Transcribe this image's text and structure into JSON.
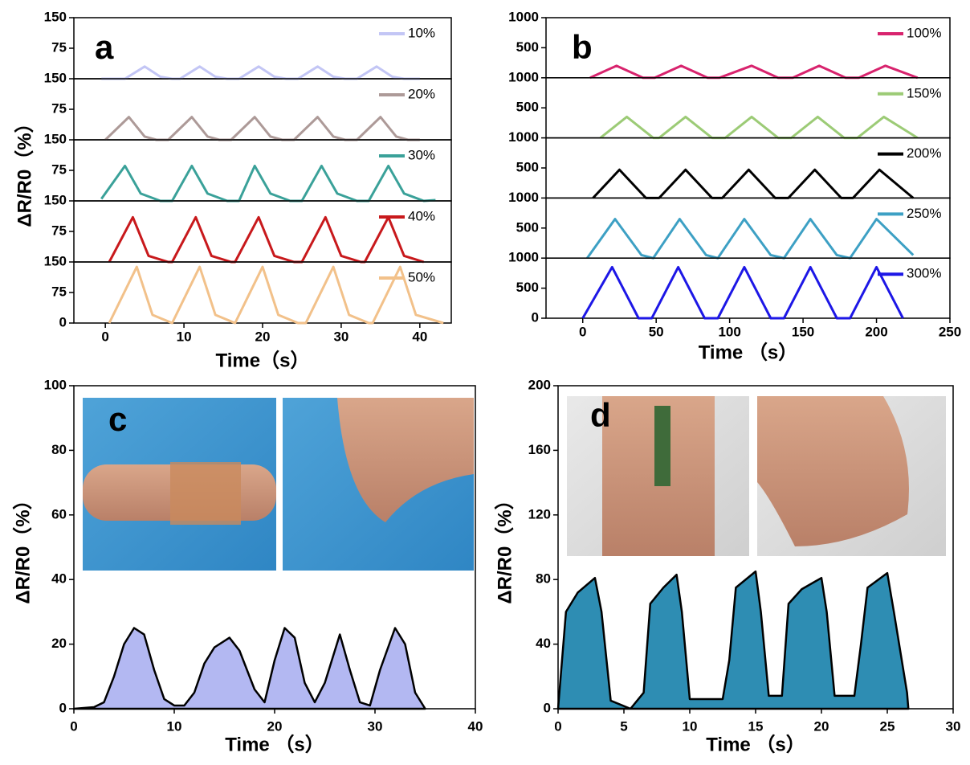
{
  "chart_data": [
    {
      "type": "stacked-line",
      "label": "a",
      "xlabel": "Time（s）",
      "ylabel": "ΔR/R0（%）",
      "xlim": [
        -4,
        44
      ],
      "xticks": [
        0,
        10,
        20,
        30,
        40
      ],
      "panels": [
        {
          "ylim": [
            0,
            150
          ],
          "yticks": [
            75,
            150
          ],
          "series": [
            {
              "name": "10%",
              "color": "#c3c6f5",
              "x": [
                -0.5,
                2.5,
                5,
                7,
                8.5,
                9.5,
                12,
                14,
                15.5,
                17,
                19.5,
                21.5,
                23,
                24.5,
                27,
                29,
                30.5,
                32,
                34.5,
                36.5,
                38,
                40
              ],
              "values": [
                0,
                0,
                30,
                5,
                0,
                0,
                30,
                5,
                0,
                0,
                30,
                5,
                0,
                0,
                30,
                5,
                0,
                0,
                30,
                5,
                0,
                0
              ]
            }
          ]
        },
        {
          "ylim": [
            0,
            150
          ],
          "yticks": [
            75,
            150
          ],
          "series": [
            {
              "name": "20%",
              "color": "#ad9a98",
              "x": [
                0,
                3,
                5,
                6.5,
                8,
                11,
                13,
                14.5,
                16,
                19,
                21,
                22.5,
                24,
                27,
                29,
                30.5,
                32,
                35,
                37,
                38.5,
                40
              ],
              "values": [
                0,
                56,
                8,
                0,
                0,
                56,
                8,
                0,
                0,
                56,
                8,
                0,
                0,
                56,
                8,
                0,
                0,
                56,
                8,
                0,
                0
              ]
            }
          ]
        },
        {
          "ylim": [
            0,
            150
          ],
          "yticks": [
            75,
            150
          ],
          "series": [
            {
              "name": "30%",
              "color": "#3aa199",
              "x": [
                -0.5,
                2.5,
                4.5,
                7,
                8.5,
                11,
                13,
                15.5,
                17,
                19,
                21,
                23.5,
                25,
                27.5,
                29.5,
                32,
                33.5,
                36,
                38,
                40.5,
                42
              ],
              "values": [
                5,
                86,
                18,
                0,
                0,
                86,
                18,
                0,
                0,
                86,
                18,
                0,
                0,
                86,
                18,
                0,
                0,
                86,
                18,
                0,
                2
              ]
            }
          ]
        },
        {
          "ylim": [
            0,
            150
          ],
          "yticks": [
            75,
            150
          ],
          "series": [
            {
              "name": "40%",
              "color": "#c8191c",
              "x": [
                0.5,
                3.5,
                5.5,
                8,
                8.5,
                11.5,
                13.5,
                16,
                16.5,
                19.5,
                21.5,
                24,
                25,
                28,
                30,
                32.5,
                33,
                36,
                38,
                40.5
              ],
              "values": [
                0,
                110,
                15,
                0,
                0,
                110,
                15,
                0,
                0,
                110,
                15,
                0,
                0,
                110,
                15,
                0,
                0,
                110,
                15,
                0
              ]
            }
          ]
        },
        {
          "ylim": [
            0,
            150
          ],
          "yticks": [
            0,
            75,
            150
          ],
          "series": [
            {
              "name": "50%",
              "color": "#f2c18a",
              "x": [
                0.5,
                4,
                6,
                8.5,
                8.5,
                12,
                14,
                16.5,
                16.5,
                20,
                22,
                24.5,
                25.5,
                29,
                31,
                33.5,
                34,
                37.5,
                39.5,
                43
              ],
              "values": [
                0,
                138,
                20,
                0,
                0,
                138,
                20,
                0,
                0,
                138,
                20,
                0,
                0,
                138,
                20,
                0,
                0,
                138,
                20,
                0
              ]
            }
          ]
        }
      ]
    },
    {
      "type": "stacked-line",
      "label": "b",
      "xlabel": "Time （s）",
      "xlim": [
        -25,
        250
      ],
      "xticks": [
        0,
        50,
        100,
        150,
        200,
        250
      ],
      "panels": [
        {
          "ylim": [
            0,
            1000
          ],
          "yticks": [
            500,
            1000
          ],
          "series": [
            {
              "name": "100%",
              "color": "#d8246e",
              "x": [
                5,
                23,
                41,
                49,
                67,
                85,
                93,
                115,
                133,
                143,
                161,
                179,
                188,
                206,
                228
              ],
              "values": [
                0,
                200,
                0,
                0,
                200,
                0,
                0,
                200,
                0,
                0,
                200,
                0,
                0,
                200,
                0
              ]
            }
          ]
        },
        {
          "ylim": [
            0,
            1000
          ],
          "yticks": [
            500,
            1000
          ],
          "series": [
            {
              "name": "150%",
              "color": "#9ccb76",
              "x": [
                12,
                30,
                48,
                52,
                70,
                88,
                97,
                115,
                133,
                142,
                160,
                178,
                187,
                205,
                228
              ],
              "values": [
                0,
                350,
                0,
                0,
                350,
                0,
                0,
                350,
                0,
                0,
                350,
                0,
                0,
                350,
                0
              ]
            }
          ]
        },
        {
          "ylim": [
            0,
            1000
          ],
          "yticks": [
            500,
            1000
          ],
          "series": [
            {
              "name": "200%",
              "color": "#000000",
              "x": [
                7,
                25,
                43,
                52,
                70,
                88,
                95,
                113,
                131,
                140,
                158,
                176,
                184,
                202,
                225
              ],
              "values": [
                0,
                470,
                0,
                0,
                470,
                0,
                0,
                470,
                0,
                0,
                470,
                0,
                0,
                470,
                0
              ]
            }
          ]
        },
        {
          "ylim": [
            0,
            1000
          ],
          "yticks": [
            500,
            1000
          ],
          "series": [
            {
              "name": "250%",
              "color": "#3da0c4",
              "x": [
                3,
                22,
                40,
                48,
                66,
                84,
                92,
                110,
                128,
                137,
                155,
                173,
                182,
                200,
                225
              ],
              "values": [
                0,
                650,
                50,
                0,
                650,
                50,
                0,
                650,
                50,
                0,
                650,
                50,
                0,
                650,
                50
              ]
            }
          ]
        },
        {
          "ylim": [
            0,
            1000
          ],
          "yticks": [
            0,
            500,
            1000
          ],
          "series": [
            {
              "name": "300%",
              "color": "#1d17e6",
              "x": [
                0,
                20,
                38,
                47,
                65,
                83,
                92,
                110,
                128,
                137,
                155,
                173,
                182,
                200,
                218
              ],
              "values": [
                0,
                850,
                0,
                0,
                850,
                0,
                0,
                850,
                0,
                0,
                850,
                0,
                0,
                850,
                0
              ]
            }
          ]
        }
      ]
    },
    {
      "type": "area",
      "label": "c",
      "xlabel": "Time （s）",
      "ylabel": "ΔR/R0（%）",
      "color": "#b3b8f2",
      "xlim": [
        0,
        40
      ],
      "xticks": [
        0,
        10,
        20,
        30,
        40
      ],
      "ylim": [
        0,
        100
      ],
      "yticks": [
        0,
        20,
        40,
        60,
        80,
        100
      ],
      "x": [
        0,
        2,
        3,
        4,
        5,
        6,
        7,
        8,
        9,
        10,
        11,
        12,
        13,
        14,
        15.5,
        16.5,
        18,
        19,
        20,
        21,
        22,
        23,
        24,
        25,
        26.5,
        27.5,
        28.5,
        29.5,
        30.5,
        32,
        33,
        34,
        35
      ],
      "values": [
        0,
        0.5,
        2,
        10,
        20,
        25,
        23,
        12,
        3,
        1,
        1,
        5,
        14,
        19,
        22,
        18,
        6,
        2,
        15,
        25,
        22,
        8,
        2,
        8,
        23,
        12,
        2,
        1,
        12,
        25,
        20,
        5,
        0
      ]
    },
    {
      "type": "area",
      "label": "d",
      "xlabel": "Time （s）",
      "ylabel": "ΔR/R0（%）",
      "color": "#2e8db3",
      "xlim": [
        0,
        30
      ],
      "xticks": [
        0,
        5,
        10,
        15,
        20,
        25,
        30
      ],
      "ylim": [
        0,
        200
      ],
      "yticks": [
        0,
        40,
        80,
        120,
        160,
        200
      ],
      "x": [
        0,
        0.6,
        1.5,
        2.8,
        3.3,
        4,
        5.5,
        6.5,
        7,
        8,
        9,
        9.4,
        10,
        12.5,
        13,
        13.5,
        15,
        15.4,
        16,
        17,
        17.5,
        18.5,
        20,
        20.4,
        21,
        22.5,
        23,
        23.5,
        25,
        25.5,
        26.5,
        26.6
      ],
      "values": [
        0,
        60,
        72,
        81,
        60,
        5,
        0,
        10,
        65,
        75,
        83,
        60,
        6,
        6,
        30,
        75,
        85,
        60,
        8,
        8,
        65,
        74,
        81,
        60,
        8,
        8,
        40,
        75,
        84,
        60,
        10,
        0
      ]
    }
  ]
}
